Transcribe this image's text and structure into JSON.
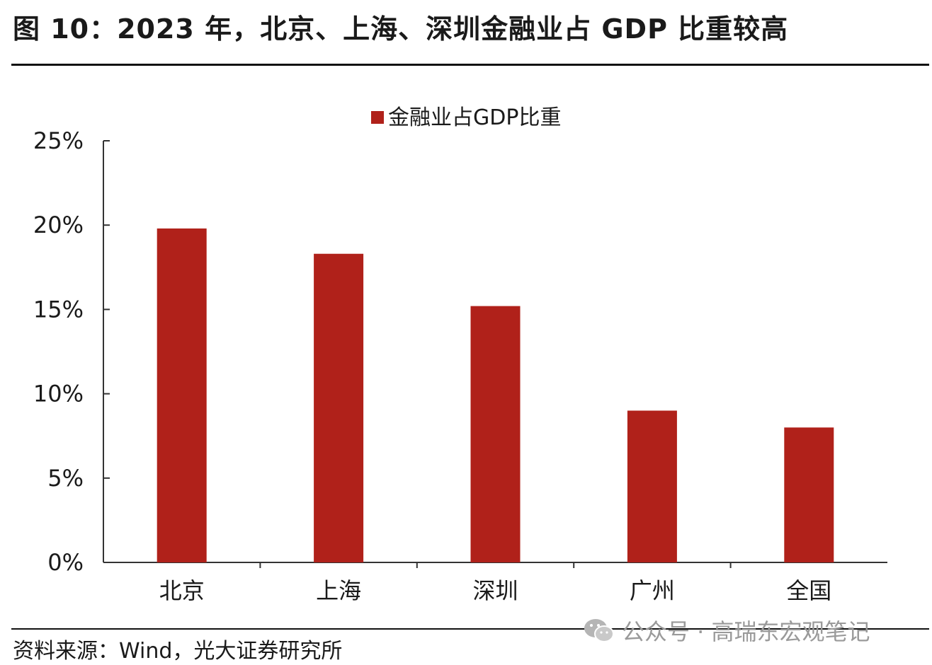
{
  "figure": {
    "title": "图 10：2023 年，北京、上海、深圳金融业占 GDP 比重较高",
    "source": "资料来源：Wind，光大证券研究所",
    "watermark": "公众号 · 高瑞东宏观笔记"
  },
  "colors": {
    "bar": "#B0211A",
    "axis": "#333333"
  },
  "icons": {
    "watermark_icon": "wechat-icon"
  },
  "chart_data": {
    "type": "bar",
    "categories": [
      "北京",
      "上海",
      "深圳",
      "广州",
      "全国"
    ],
    "series": [
      {
        "name": "金融业占GDP比重",
        "values": [
          19.8,
          18.3,
          15.2,
          9.0,
          8.0
        ]
      }
    ],
    "ylim": [
      0,
      25
    ],
    "yticks": [
      0,
      5,
      10,
      15,
      20,
      25
    ],
    "ytick_labels": [
      "0%",
      "5%",
      "10%",
      "15%",
      "20%",
      "25%"
    ],
    "legend": "top-center",
    "grid": false
  }
}
